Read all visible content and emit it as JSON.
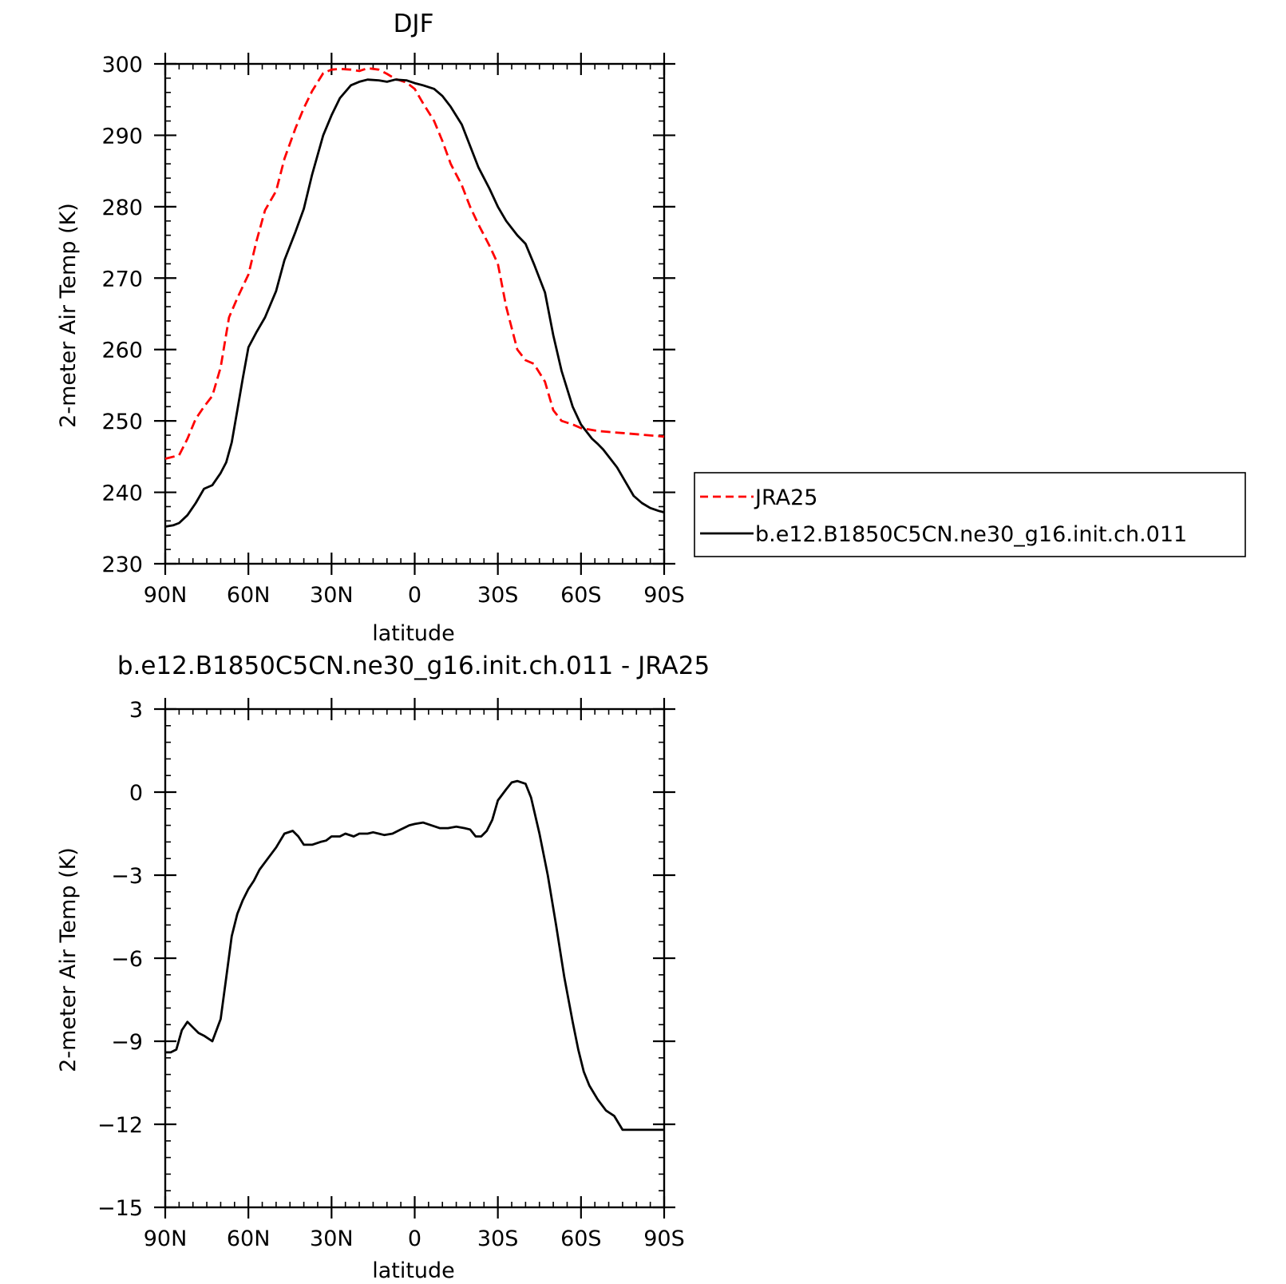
{
  "chart_data": [
    {
      "type": "line",
      "title": "DJF",
      "xlabel": "latitude",
      "ylabel": "2-meter Air Temp (K)",
      "xlim": [
        90,
        -90
      ],
      "ylim": [
        230,
        300
      ],
      "xticks": [
        90,
        60,
        30,
        0,
        -30,
        -60,
        -90
      ],
      "xtick_labels": [
        "90N",
        "60N",
        "30N",
        "0",
        "30S",
        "60S",
        "90S"
      ],
      "yticks": [
        230,
        240,
        250,
        260,
        270,
        280,
        290,
        300
      ],
      "ytick_labels": [
        "230",
        "240",
        "250",
        "260",
        "270",
        "280",
        "290",
        "300"
      ],
      "grid": false,
      "legend_position": "right",
      "colors": {
        "jra": "#ff0000",
        "model": "#000000"
      },
      "series": [
        {
          "name": "JRA25",
          "style": "dashed",
          "color": "#ff0000",
          "x": [
            90,
            85,
            82,
            79,
            76,
            73,
            70,
            67,
            64,
            60,
            57,
            54,
            50,
            47,
            43,
            40,
            37,
            33,
            30,
            27,
            23,
            20,
            17,
            13,
            10,
            7,
            3,
            0,
            -3,
            -7,
            -10,
            -13,
            -17,
            -20,
            -23,
            -27,
            -30,
            -33,
            -37,
            -40,
            -43,
            -47,
            -50,
            -53,
            -57,
            -60,
            -63,
            -66,
            -69,
            -72,
            -75,
            -78,
            -81,
            -84,
            -87,
            -90
          ],
          "values": [
            244.7,
            245.2,
            247.5,
            250.3,
            252.0,
            253.5,
            257.5,
            264.5,
            267.2,
            270.5,
            275.3,
            279.5,
            282.2,
            286.7,
            291.0,
            293.8,
            296.2,
            298.7,
            299.2,
            299.3,
            299.2,
            299.0,
            299.4,
            299.2,
            298.6,
            297.9,
            297.4,
            296.5,
            294.5,
            292.0,
            289.2,
            286.0,
            283.0,
            280.0,
            277.5,
            274.5,
            272.0,
            266.0,
            260.0,
            258.5,
            258.0,
            255.5,
            251.5,
            250.0,
            249.5,
            249.0,
            248.8,
            248.6,
            248.5,
            248.4,
            248.3,
            248.2,
            248.1,
            248.0,
            247.9,
            247.8
          ]
        },
        {
          "name": "b.e12.B1850C5CN.ne30_g16.init.ch.011",
          "style": "solid",
          "color": "#000000",
          "x": [
            90,
            87,
            85,
            82,
            79,
            76,
            73,
            70,
            68,
            66,
            64,
            62,
            60,
            57,
            54,
            50,
            47,
            43,
            40,
            37,
            33,
            30,
            27,
            23,
            20,
            17,
            13,
            10,
            7,
            3,
            0,
            -3,
            -7,
            -10,
            -13,
            -17,
            -20,
            -23,
            -27,
            -30,
            -33,
            -37,
            -40,
            -43,
            -47,
            -50,
            -53,
            -57,
            -60,
            -62,
            -64,
            -66,
            -68,
            -70,
            -73,
            -76,
            -79,
            -82,
            -85,
            -88,
            -90
          ],
          "values": [
            235.2,
            235.4,
            235.7,
            236.8,
            238.5,
            240.5,
            241.0,
            242.7,
            244.2,
            247.0,
            251.5,
            256.0,
            260.3,
            262.5,
            264.5,
            268.2,
            272.5,
            276.5,
            279.7,
            284.5,
            290.0,
            292.8,
            295.2,
            297.0,
            297.5,
            297.8,
            297.7,
            297.5,
            297.8,
            297.7,
            297.3,
            297.0,
            296.5,
            295.5,
            294.0,
            291.5,
            288.5,
            285.5,
            282.5,
            280.0,
            278.0,
            276.0,
            274.8,
            272.0,
            268.0,
            262.0,
            257.0,
            252.0,
            249.5,
            248.5,
            247.5,
            246.8,
            246.0,
            245.0,
            243.5,
            241.5,
            239.5,
            238.5,
            237.8,
            237.4,
            237.2
          ]
        }
      ]
    },
    {
      "type": "line",
      "title": "b.e12.B1850C5CN.ne30_g16.init.ch.011 - JRA25",
      "xlabel": "latitude",
      "ylabel": "2-meter Air Temp (K)",
      "xlim": [
        90,
        -90
      ],
      "ylim": [
        -15,
        3
      ],
      "xticks": [
        90,
        60,
        30,
        0,
        -30,
        -60,
        -90
      ],
      "xtick_labels": [
        "90N",
        "60N",
        "30N",
        "0",
        "30S",
        "60S",
        "90S"
      ],
      "yticks": [
        -15,
        -12,
        -9,
        -6,
        -3,
        0,
        3
      ],
      "ytick_labels": [
        "−15",
        "−12",
        "−9",
        "−6",
        "−3",
        "0",
        "3"
      ],
      "grid": false,
      "series": [
        {
          "style": "solid",
          "color": "#000000",
          "x": [
            90,
            88,
            86,
            84,
            82,
            80,
            78,
            76,
            73,
            70,
            68,
            66,
            64,
            62,
            60,
            58,
            56,
            53,
            50,
            47,
            44,
            42,
            40,
            37,
            34,
            32,
            30,
            27,
            25,
            22,
            20,
            17,
            15,
            13,
            11,
            8,
            5,
            2,
            0,
            -3,
            -6,
            -9,
            -12,
            -15,
            -18,
            -20,
            -22,
            -24,
            -26,
            -28,
            -30,
            -33,
            -35,
            -37,
            -40,
            -42,
            -45,
            -48,
            -51,
            -54,
            -57,
            -59,
            -61,
            -63,
            -66,
            -69,
            -72,
            -75,
            -78,
            -81,
            -84,
            -87,
            -89,
            -90
          ],
          "values": [
            -9.4,
            -9.4,
            -9.3,
            -8.6,
            -8.3,
            -8.5,
            -8.7,
            -8.8,
            -9.0,
            -8.2,
            -6.7,
            -5.2,
            -4.4,
            -3.9,
            -3.5,
            -3.2,
            -2.8,
            -2.4,
            -2.0,
            -1.5,
            -1.4,
            -1.6,
            -1.9,
            -1.9,
            -1.8,
            -1.75,
            -1.6,
            -1.6,
            -1.5,
            -1.6,
            -1.5,
            -1.5,
            -1.45,
            -1.5,
            -1.55,
            -1.5,
            -1.35,
            -1.2,
            -1.15,
            -1.1,
            -1.2,
            -1.3,
            -1.3,
            -1.25,
            -1.3,
            -1.35,
            -1.6,
            -1.6,
            -1.4,
            -1.0,
            -0.3,
            0.1,
            0.35,
            0.4,
            0.3,
            -0.2,
            -1.5,
            -3.0,
            -4.8,
            -6.7,
            -8.3,
            -9.3,
            -10.1,
            -10.6,
            -11.1,
            -11.5,
            -11.7,
            -12.2,
            -12.2,
            -12.2,
            -12.2,
            -12.2,
            -12.2,
            -12.2
          ]
        }
      ]
    }
  ]
}
